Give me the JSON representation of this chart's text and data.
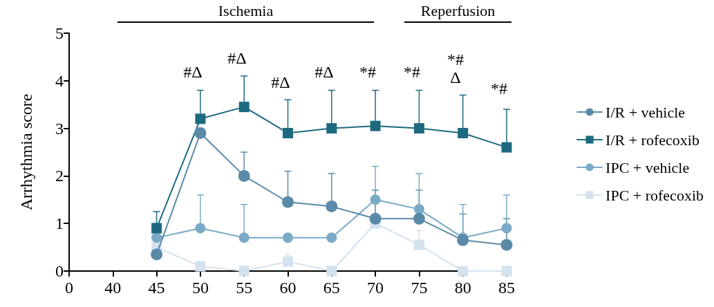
{
  "chart_data": {
    "type": "line",
    "ylabel": "Arrhythmia score",
    "categories": [
      "0",
      "40",
      "45",
      "50",
      "55",
      "60",
      "65",
      "70",
      "75",
      "80",
      "85"
    ],
    "ylim": [
      0,
      5
    ],
    "yticks": [
      0,
      1,
      2,
      3,
      4,
      5
    ],
    "legend": "right",
    "line_style": "solid",
    "series": [
      {
        "name": "I/R + vehicle",
        "color": "#5b8aa8",
        "marker": "circle",
        "values": [
          null,
          null,
          0.35,
          2.9,
          2.0,
          1.45,
          1.36,
          1.1,
          1.1,
          0.65,
          0.55
        ],
        "errors": [
          null,
          null,
          [
            0.35,
            1.0
          ],
          null,
          [
            2.0,
            2.5
          ],
          [
            1.45,
            2.1
          ],
          [
            1.36,
            2.05
          ],
          [
            1.1,
            1.7
          ],
          [
            1.1,
            1.7
          ],
          [
            0.65,
            1.2
          ],
          [
            0.55,
            1.1
          ]
        ]
      },
      {
        "name": "I/R + rofecoxib",
        "color": "#1d6a80",
        "marker": "square",
        "values": [
          null,
          null,
          0.9,
          3.2,
          3.45,
          2.9,
          3.0,
          3.05,
          3.0,
          2.9,
          2.6
        ],
        "errors": [
          null,
          null,
          [
            0.9,
            1.25
          ],
          [
            3.2,
            3.8
          ],
          [
            3.45,
            4.1
          ],
          [
            2.9,
            3.6
          ],
          [
            3.0,
            3.8
          ],
          [
            3.05,
            3.8
          ],
          [
            3.0,
            3.8
          ],
          [
            2.9,
            3.7
          ],
          [
            2.6,
            3.4
          ]
        ]
      },
      {
        "name": "IPC + vehicle",
        "color": "#7aaac6",
        "marker": "circle",
        "values": [
          null,
          null,
          0.7,
          0.9,
          0.7,
          0.7,
          0.7,
          1.5,
          1.3,
          0.7,
          0.9
        ],
        "errors": [
          null,
          null,
          null,
          [
            0.9,
            1.6
          ],
          [
            0.7,
            1.4
          ],
          null,
          null,
          [
            1.5,
            2.2
          ],
          [
            1.3,
            2.05
          ],
          [
            0.7,
            1.4
          ],
          [
            0.9,
            1.6
          ]
        ]
      },
      {
        "name": "IPC + rofecoxib",
        "color": "#d4e2ee",
        "marker": "square",
        "values": [
          null,
          null,
          0.5,
          0.1,
          0,
          0.2,
          0,
          1.0,
          0.55,
          0,
          0
        ],
        "errors": [
          null,
          null,
          null,
          null,
          null,
          [
            0.2,
            0.35
          ],
          null,
          null,
          [
            0.55,
            0.85
          ],
          null,
          null
        ]
      }
    ],
    "annotations": [
      "Ischemia",
      "Reperfusion",
      "#Δ",
      "#Δ",
      "#Δ",
      "#Δ",
      "*#",
      "*#",
      "*#",
      "Δ",
      "*#"
    ]
  }
}
